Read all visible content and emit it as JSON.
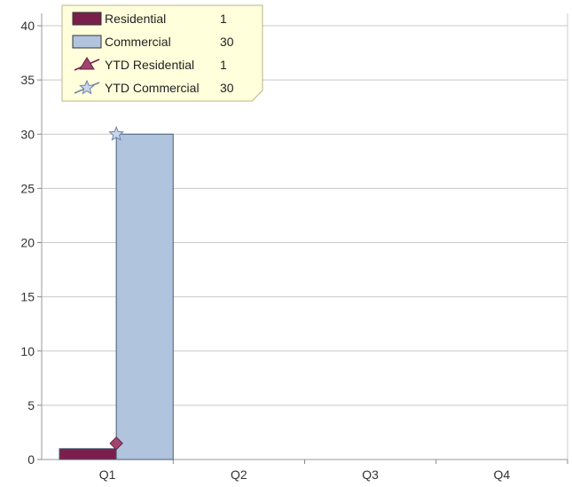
{
  "chart_data": {
    "type": "bar",
    "categories": [
      "Q1",
      "Q2",
      "Q3",
      "Q4"
    ],
    "series": [
      {
        "name": "Residential",
        "kind": "bar",
        "values": [
          1,
          0,
          0,
          0
        ],
        "color": "#7a1f4b"
      },
      {
        "name": "Commercial",
        "kind": "bar",
        "values": [
          30,
          0,
          0,
          0
        ],
        "color": "#b0c4de"
      },
      {
        "name": "YTD Residential",
        "kind": "line",
        "marker": "diamond",
        "values": [
          1,
          null,
          null,
          null
        ],
        "color": "#a04470"
      },
      {
        "name": "YTD Commercial",
        "kind": "line",
        "marker": "star",
        "values": [
          30,
          null,
          null,
          null
        ],
        "color": "#9ab0d0"
      }
    ],
    "legend": {
      "placement": "top-left",
      "entries": [
        {
          "label": "Residential",
          "value": "1",
          "swatch": "bar",
          "color": "#7a1f4b"
        },
        {
          "label": "Commercial",
          "value": "30",
          "swatch": "bar",
          "color": "#b0c4de"
        },
        {
          "label": "YTD Residential",
          "value": "1",
          "swatch": "line-triangle",
          "color": "#a04470"
        },
        {
          "label": "YTD Commercial",
          "value": "30",
          "swatch": "line-star",
          "color": "#9ab0d0"
        }
      ]
    },
    "y_ticks": [
      "0",
      "5",
      "10",
      "15",
      "20",
      "25",
      "30",
      "35",
      "40"
    ],
    "ylim": [
      0,
      40
    ],
    "grid": true,
    "title": "",
    "xlabel": "",
    "ylabel": ""
  }
}
